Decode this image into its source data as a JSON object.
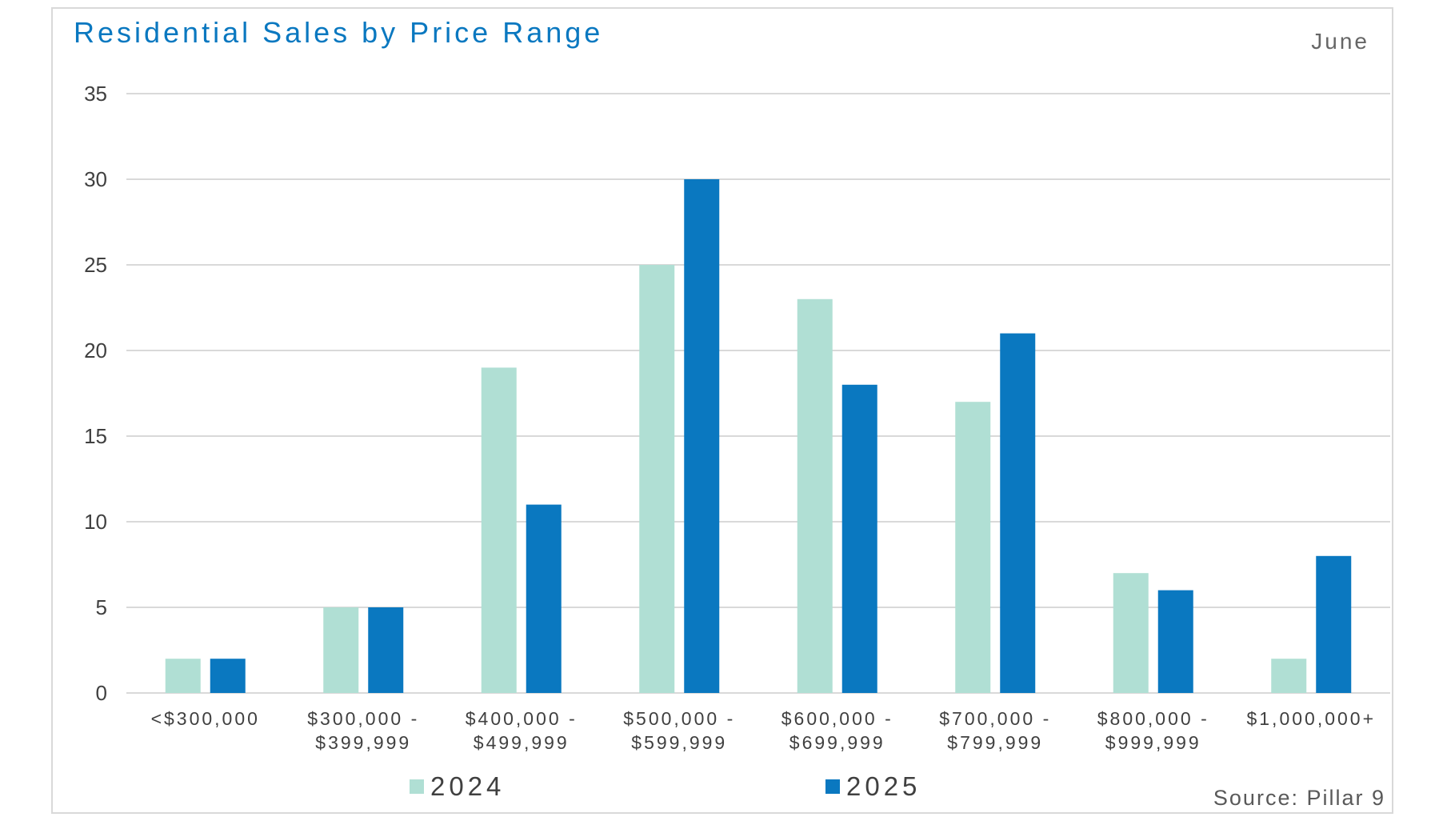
{
  "header": {
    "title": "Residential Sales by Price Range",
    "month": "June"
  },
  "footer": {
    "source": "Source: Pillar 9"
  },
  "colors": {
    "title": "#0a78c0",
    "series_2024": "#b0dfd4",
    "series_2025": "#0a78c0",
    "grid": "#d9d9d9",
    "text": "#404040"
  },
  "chart_data": {
    "type": "bar",
    "title": "Residential Sales by Price Range",
    "subtitle": "June",
    "categories": [
      "<$300,000",
      "$300,000 - $399,999",
      "$400,000 - $499,999",
      "$500,000 - $599,999",
      "$600,000 - $699,999",
      "$700,000 - $799,999",
      "$800,000 - $999,999",
      "$1,000,000+"
    ],
    "category_lines": [
      [
        "<$300,000"
      ],
      [
        "$300,000 -",
        "$399,999"
      ],
      [
        "$400,000 -",
        "$499,999"
      ],
      [
        "$500,000 -",
        "$599,999"
      ],
      [
        "$600,000 -",
        "$699,999"
      ],
      [
        "$700,000 -",
        "$799,999"
      ],
      [
        "$800,000 -",
        "$999,999"
      ],
      [
        "$1,000,000+"
      ]
    ],
    "series": [
      {
        "name": "2024",
        "color": "#b0dfd4",
        "values": [
          2,
          5,
          19,
          25,
          23,
          17,
          7,
          2
        ]
      },
      {
        "name": "2025",
        "color": "#0a78c0",
        "values": [
          2,
          5,
          11,
          30,
          18,
          21,
          6,
          8
        ]
      }
    ],
    "ylim": [
      0,
      35
    ],
    "yticks": [
      0,
      5,
      10,
      15,
      20,
      25,
      30,
      35
    ],
    "xlabel": "",
    "ylabel": "",
    "grid": true,
    "legend": "bottom",
    "source": "Source: Pillar 9"
  }
}
